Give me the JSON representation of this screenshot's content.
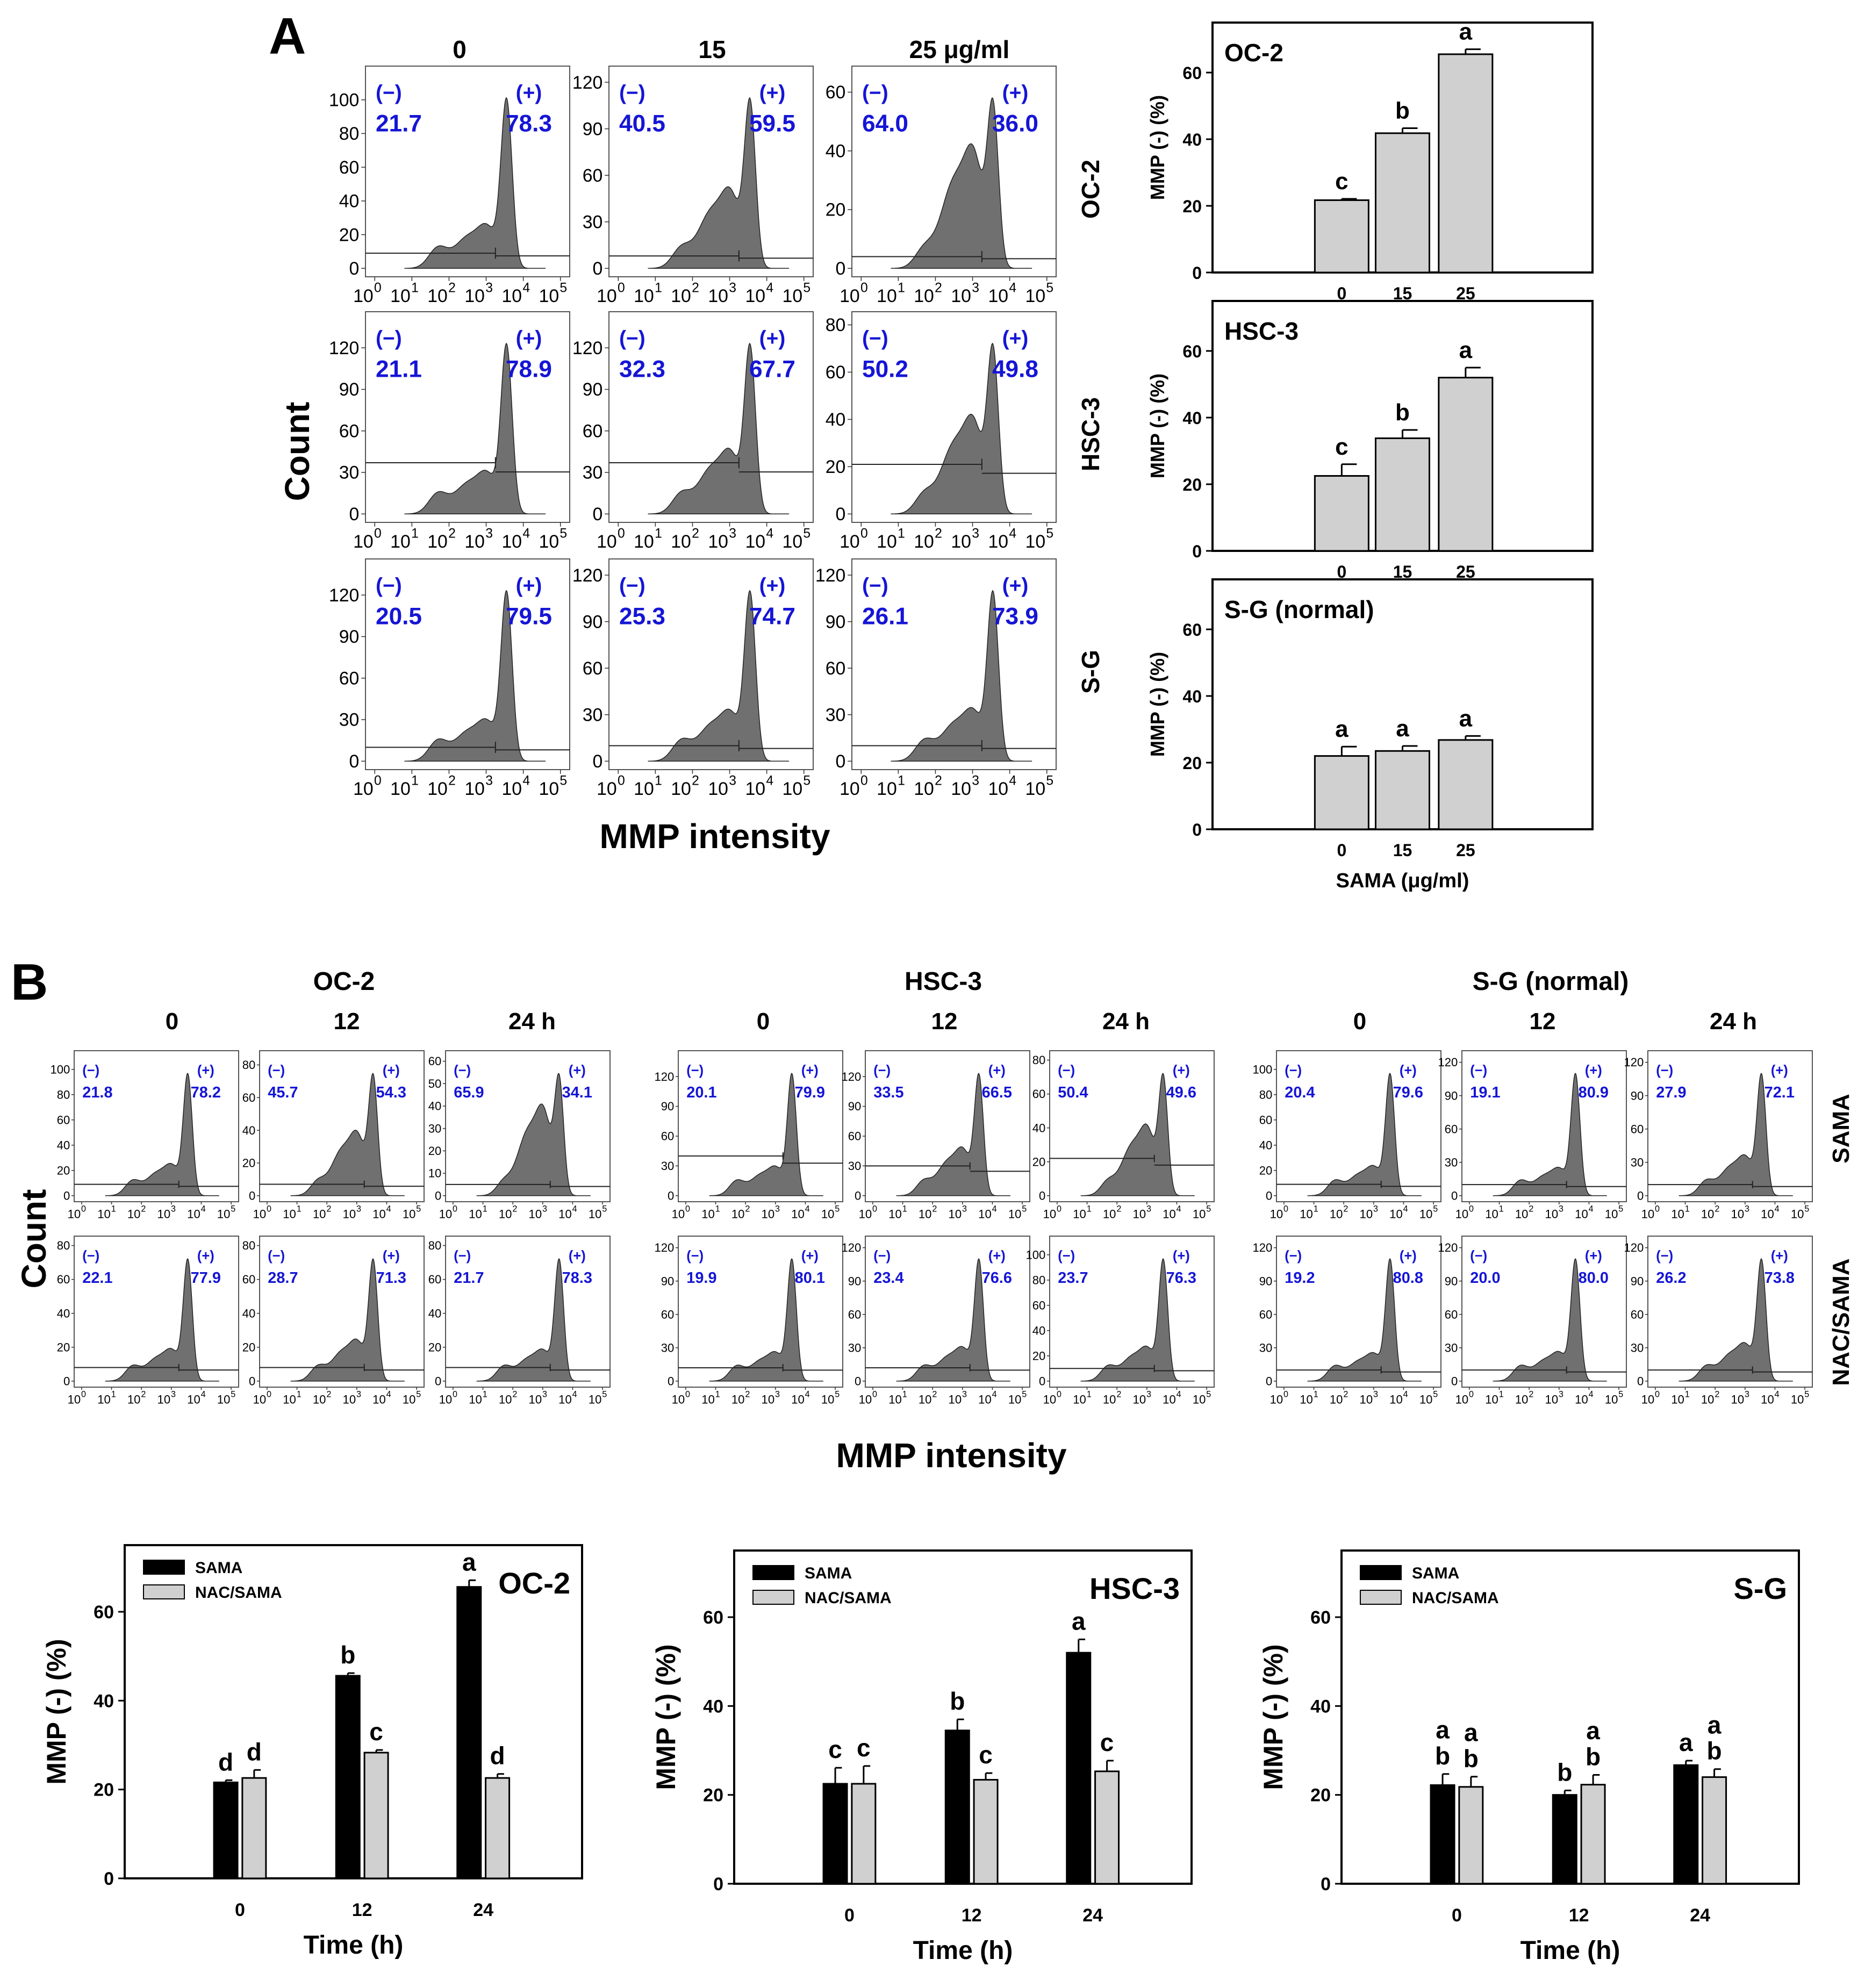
{
  "figure": {
    "panel_a_letter": "A",
    "panel_b_letter": "B",
    "count_label": "Count",
    "mmp_intensity_label": "MMP intensity",
    "neg_gate_label": "(−)",
    "pos_gate_label": "(+)",
    "x_ticks": [
      "10",
      "0",
      "10",
      "1",
      "10",
      "2",
      "10",
      "3",
      "10",
      "4",
      "10",
      "5"
    ]
  },
  "panel_a": {
    "doses": [
      "0",
      "15",
      "25 μg/ml"
    ],
    "cell_lines": [
      "OC-2",
      "HSC-3",
      "S-G"
    ]
  },
  "panel_b": {
    "groups": [
      "OC-2",
      "HSC-3",
      "S-G (normal)"
    ],
    "times": [
      "0",
      "12",
      "24 h"
    ],
    "row_labels": [
      "SAMA",
      "NAC/SAMA"
    ]
  },
  "colors": {
    "fill": "#707070",
    "gate_text": "#1515d6",
    "bar_light": "#d0d0d0",
    "bar_dark": "#000000"
  },
  "chart_data": [
    {
      "type": "histogram-grid",
      "id": "A-histograms",
      "row_labels": [
        "OC-2",
        "HSC-3",
        "S-G"
      ],
      "col_labels": [
        "0",
        "15",
        "25 μg/ml"
      ],
      "panels": [
        {
          "row": 0,
          "col": 0,
          "yticks": [
            "0",
            "20",
            "40",
            "60",
            "80",
            "100"
          ],
          "ymax": 115,
          "neg": "21.7",
          "pos": "78.3",
          "gate_y": 9
        },
        {
          "row": 0,
          "col": 1,
          "yticks": [
            "0",
            "30",
            "60",
            "90",
            "120"
          ],
          "ymax": 125,
          "neg": "40.5",
          "pos": "59.5",
          "gate_y": 8
        },
        {
          "row": 0,
          "col": 2,
          "yticks": [
            "0",
            "20",
            "40",
            "60"
          ],
          "ymax": 66,
          "neg": "64.0",
          "pos": "36.0",
          "gate_y": 4
        },
        {
          "row": 1,
          "col": 0,
          "yticks": [
            "0",
            "30",
            "60",
            "90",
            "120"
          ],
          "ymax": 140,
          "neg": "21.1",
          "pos": "78.9",
          "gate_y": 37
        },
        {
          "row": 1,
          "col": 1,
          "yticks": [
            "0",
            "30",
            "60",
            "90",
            "120"
          ],
          "ymax": 140,
          "neg": "32.3",
          "pos": "67.7",
          "gate_y": 37
        },
        {
          "row": 1,
          "col": 2,
          "yticks": [
            "0",
            "20",
            "40",
            "60",
            "80"
          ],
          "ymax": 82,
          "neg": "50.2",
          "pos": "49.8",
          "gate_y": 21
        },
        {
          "row": 2,
          "col": 0,
          "yticks": [
            "0",
            "30",
            "60",
            "90",
            "120"
          ],
          "ymax": 140,
          "neg": "20.5",
          "pos": "79.5",
          "gate_y": 10
        },
        {
          "row": 2,
          "col": 1,
          "yticks": [
            "0",
            "30",
            "60",
            "90",
            "120"
          ],
          "ymax": 125,
          "neg": "25.3",
          "pos": "74.7",
          "gate_y": 10
        },
        {
          "row": 2,
          "col": 2,
          "yticks": [
            "0",
            "30",
            "60",
            "90",
            "120"
          ],
          "ymax": 125,
          "neg": "26.1",
          "pos": "73.9",
          "gate_y": 10
        }
      ]
    },
    {
      "type": "bar",
      "id": "A-bar-oc2",
      "title": "OC-2",
      "ylabel": "MMP (-) (%)",
      "ylim": [
        0,
        75
      ],
      "yticks": [
        0,
        20,
        40,
        60
      ],
      "categories": [
        "0",
        "15",
        "25"
      ],
      "values": [
        21.7,
        41.8,
        65.5
      ],
      "errors": [
        0.4,
        1.5,
        1.5
      ],
      "letters": [
        "c",
        "b",
        "a"
      ]
    },
    {
      "type": "bar",
      "id": "A-bar-hsc3",
      "title": "HSC-3",
      "ylabel": "MMP (-) (%)",
      "ylim": [
        0,
        75
      ],
      "yticks": [
        0,
        20,
        40,
        60
      ],
      "categories": [
        "0",
        "15",
        "25"
      ],
      "values": [
        22.5,
        33.8,
        52.0
      ],
      "errors": [
        3.5,
        2.5,
        3.0
      ],
      "letters": [
        "c",
        "b",
        "a"
      ]
    },
    {
      "type": "bar",
      "id": "A-bar-sg",
      "title": "S-G (normal)",
      "ylabel": "MMP (-) (%)",
      "xlabel": "SAMA (μg/ml)",
      "ylim": [
        0,
        75
      ],
      "yticks": [
        0,
        20,
        40,
        60
      ],
      "categories": [
        "0",
        "15",
        "25"
      ],
      "values": [
        22.0,
        23.5,
        26.8
      ],
      "errors": [
        2.8,
        1.5,
        1.2
      ],
      "letters": [
        "a",
        "a",
        "a"
      ]
    },
    {
      "type": "histogram-grid",
      "id": "B-histograms-oc2",
      "group": "OC-2",
      "row_labels": [
        "SAMA",
        "NAC/SAMA"
      ],
      "col_labels": [
        "0",
        "12",
        "24 h"
      ],
      "panels": [
        {
          "row": 0,
          "col": 0,
          "yticks": [
            "0",
            "20",
            "40",
            "60",
            "80",
            "100"
          ],
          "ymax": 110,
          "neg": "21.8",
          "pos": "78.2",
          "gate_y": 9
        },
        {
          "row": 0,
          "col": 1,
          "yticks": [
            "0",
            "20",
            "40",
            "60",
            "80"
          ],
          "ymax": 85,
          "neg": "45.7",
          "pos": "54.3",
          "gate_y": 7
        },
        {
          "row": 0,
          "col": 2,
          "yticks": [
            "0",
            "10",
            "20",
            "30",
            "40",
            "50",
            "60"
          ],
          "ymax": 62,
          "neg": "65.9",
          "pos": "34.1",
          "gate_y": 5
        },
        {
          "row": 1,
          "col": 0,
          "yticks": [
            "0",
            "20",
            "40",
            "60",
            "80"
          ],
          "ymax": 82,
          "neg": "22.1",
          "pos": "77.9",
          "gate_y": 8
        },
        {
          "row": 1,
          "col": 1,
          "yticks": [
            "0",
            "20",
            "40",
            "60",
            "80"
          ],
          "ymax": 82,
          "neg": "28.7",
          "pos": "71.3",
          "gate_y": 8
        },
        {
          "row": 1,
          "col": 2,
          "yticks": [
            "0",
            "20",
            "40",
            "60",
            "80"
          ],
          "ymax": 82,
          "neg": "21.7",
          "pos": "78.3",
          "gate_y": 8
        }
      ]
    },
    {
      "type": "histogram-grid",
      "id": "B-histograms-hsc3",
      "group": "HSC-3",
      "row_labels": [
        "SAMA",
        "NAC/SAMA"
      ],
      "col_labels": [
        "0",
        "12",
        "24 h"
      ],
      "panels": [
        {
          "row": 0,
          "col": 0,
          "yticks": [
            "0",
            "30",
            "60",
            "90",
            "120"
          ],
          "ymax": 140,
          "neg": "20.1",
          "pos": "79.9",
          "gate_y": 40
        },
        {
          "row": 0,
          "col": 1,
          "yticks": [
            "0",
            "30",
            "60",
            "90",
            "120"
          ],
          "ymax": 140,
          "neg": "33.5",
          "pos": "66.5",
          "gate_y": 30
        },
        {
          "row": 0,
          "col": 2,
          "yticks": [
            "0",
            "20",
            "40",
            "60",
            "80"
          ],
          "ymax": 82,
          "neg": "50.4",
          "pos": "49.6",
          "gate_y": 22
        },
        {
          "row": 1,
          "col": 0,
          "yticks": [
            "0",
            "30",
            "60",
            "90",
            "120"
          ],
          "ymax": 125,
          "neg": "19.9",
          "pos": "80.1",
          "gate_y": 12
        },
        {
          "row": 1,
          "col": 1,
          "yticks": [
            "0",
            "30",
            "60",
            "90",
            "120"
          ],
          "ymax": 125,
          "neg": "23.4",
          "pos": "76.6",
          "gate_y": 12
        },
        {
          "row": 1,
          "col": 2,
          "yticks": [
            "0",
            "20",
            "40",
            "60",
            "80",
            "100"
          ],
          "ymax": 110,
          "neg": "23.7",
          "pos": "76.3",
          "gate_y": 10
        }
      ]
    },
    {
      "type": "histogram-grid",
      "id": "B-histograms-sg",
      "group": "S-G (normal)",
      "row_labels": [
        "SAMA",
        "NAC/SAMA"
      ],
      "col_labels": [
        "0",
        "12",
        "24 h"
      ],
      "panels": [
        {
          "row": 0,
          "col": 0,
          "yticks": [
            "0",
            "20",
            "40",
            "60",
            "80",
            "100"
          ],
          "ymax": 110,
          "neg": "20.4",
          "pos": "79.6",
          "gate_y": 9
        },
        {
          "row": 0,
          "col": 1,
          "yticks": [
            "0",
            "30",
            "60",
            "90",
            "120"
          ],
          "ymax": 125,
          "neg": "19.1",
          "pos": "80.9",
          "gate_y": 10
        },
        {
          "row": 0,
          "col": 2,
          "yticks": [
            "0",
            "30",
            "60",
            "90",
            "120"
          ],
          "ymax": 125,
          "neg": "27.9",
          "pos": "72.1",
          "gate_y": 10
        },
        {
          "row": 1,
          "col": 0,
          "yticks": [
            "0",
            "30",
            "60",
            "90",
            "120"
          ],
          "ymax": 125,
          "neg": "19.2",
          "pos": "80.8",
          "gate_y": 10
        },
        {
          "row": 1,
          "col": 1,
          "yticks": [
            "0",
            "30",
            "60",
            "90",
            "120"
          ],
          "ymax": 125,
          "neg": "20.0",
          "pos": "80.0",
          "gate_y": 10
        },
        {
          "row": 1,
          "col": 2,
          "yticks": [
            "0",
            "30",
            "60",
            "90",
            "120"
          ],
          "ymax": 125,
          "neg": "26.2",
          "pos": "73.8",
          "gate_y": 10
        }
      ]
    },
    {
      "type": "bar",
      "id": "B-bar-oc2",
      "title": "OC-2",
      "ylabel": "MMP (-) (%)",
      "xlabel": "Time (h)",
      "ylim": [
        0,
        75
      ],
      "yticks": [
        0,
        20,
        40,
        60
      ],
      "legend": [
        "SAMA",
        "NAC/SAMA"
      ],
      "categories": [
        "0",
        "12",
        "24"
      ],
      "series": [
        {
          "name": "SAMA",
          "values": [
            21.6,
            45.6,
            65.6
          ],
          "errors": [
            0.5,
            0.6,
            1.5
          ],
          "letters": [
            "d",
            "b",
            "a"
          ]
        },
        {
          "name": "NAC/SAMA",
          "values": [
            22.6,
            28.3,
            22.6
          ],
          "errors": [
            1.8,
            0.6,
            0.9
          ],
          "letters": [
            "d",
            "c",
            "d"
          ]
        }
      ]
    },
    {
      "type": "bar",
      "id": "B-bar-hsc3",
      "title": "HSC-3",
      "ylabel": "MMP (-) (%)",
      "xlabel": "Time (h)",
      "ylim": [
        0,
        75
      ],
      "yticks": [
        0,
        20,
        40,
        60
      ],
      "legend": [
        "SAMA",
        "NAC/SAMA"
      ],
      "categories": [
        "0",
        "12",
        "24"
      ],
      "series": [
        {
          "name": "SAMA",
          "values": [
            22.5,
            34.5,
            52.0
          ],
          "errors": [
            3.6,
            2.5,
            3.0
          ],
          "letters": [
            "c",
            "b",
            "a"
          ]
        },
        {
          "name": "NAC/SAMA",
          "values": [
            22.5,
            23.4,
            25.3
          ],
          "errors": [
            4.0,
            1.5,
            2.4
          ],
          "letters": [
            "c",
            "c",
            "c"
          ]
        }
      ]
    },
    {
      "type": "bar",
      "id": "B-bar-sg",
      "title": "S-G",
      "ylabel": "MMP (-) (%)",
      "xlabel": "Time (h)",
      "ylim": [
        0,
        75
      ],
      "yticks": [
        0,
        20,
        40,
        60
      ],
      "legend": [
        "SAMA",
        "NAC/SAMA"
      ],
      "categories": [
        "0",
        "12",
        "24"
      ],
      "series": [
        {
          "name": "SAMA",
          "values": [
            22.2,
            20.0,
            26.7
          ],
          "errors": [
            2.5,
            1.0,
            1.0
          ],
          "letters": [
            [
              "a",
              "b"
            ],
            "b",
            "a"
          ]
        },
        {
          "name": "NAC/SAMA",
          "values": [
            21.8,
            22.3,
            24.0
          ],
          "errors": [
            2.3,
            2.2,
            1.8
          ],
          "letters": [
            [
              "a",
              "b"
            ],
            [
              "a",
              "b"
            ],
            [
              "a",
              "b"
            ]
          ]
        }
      ]
    }
  ]
}
